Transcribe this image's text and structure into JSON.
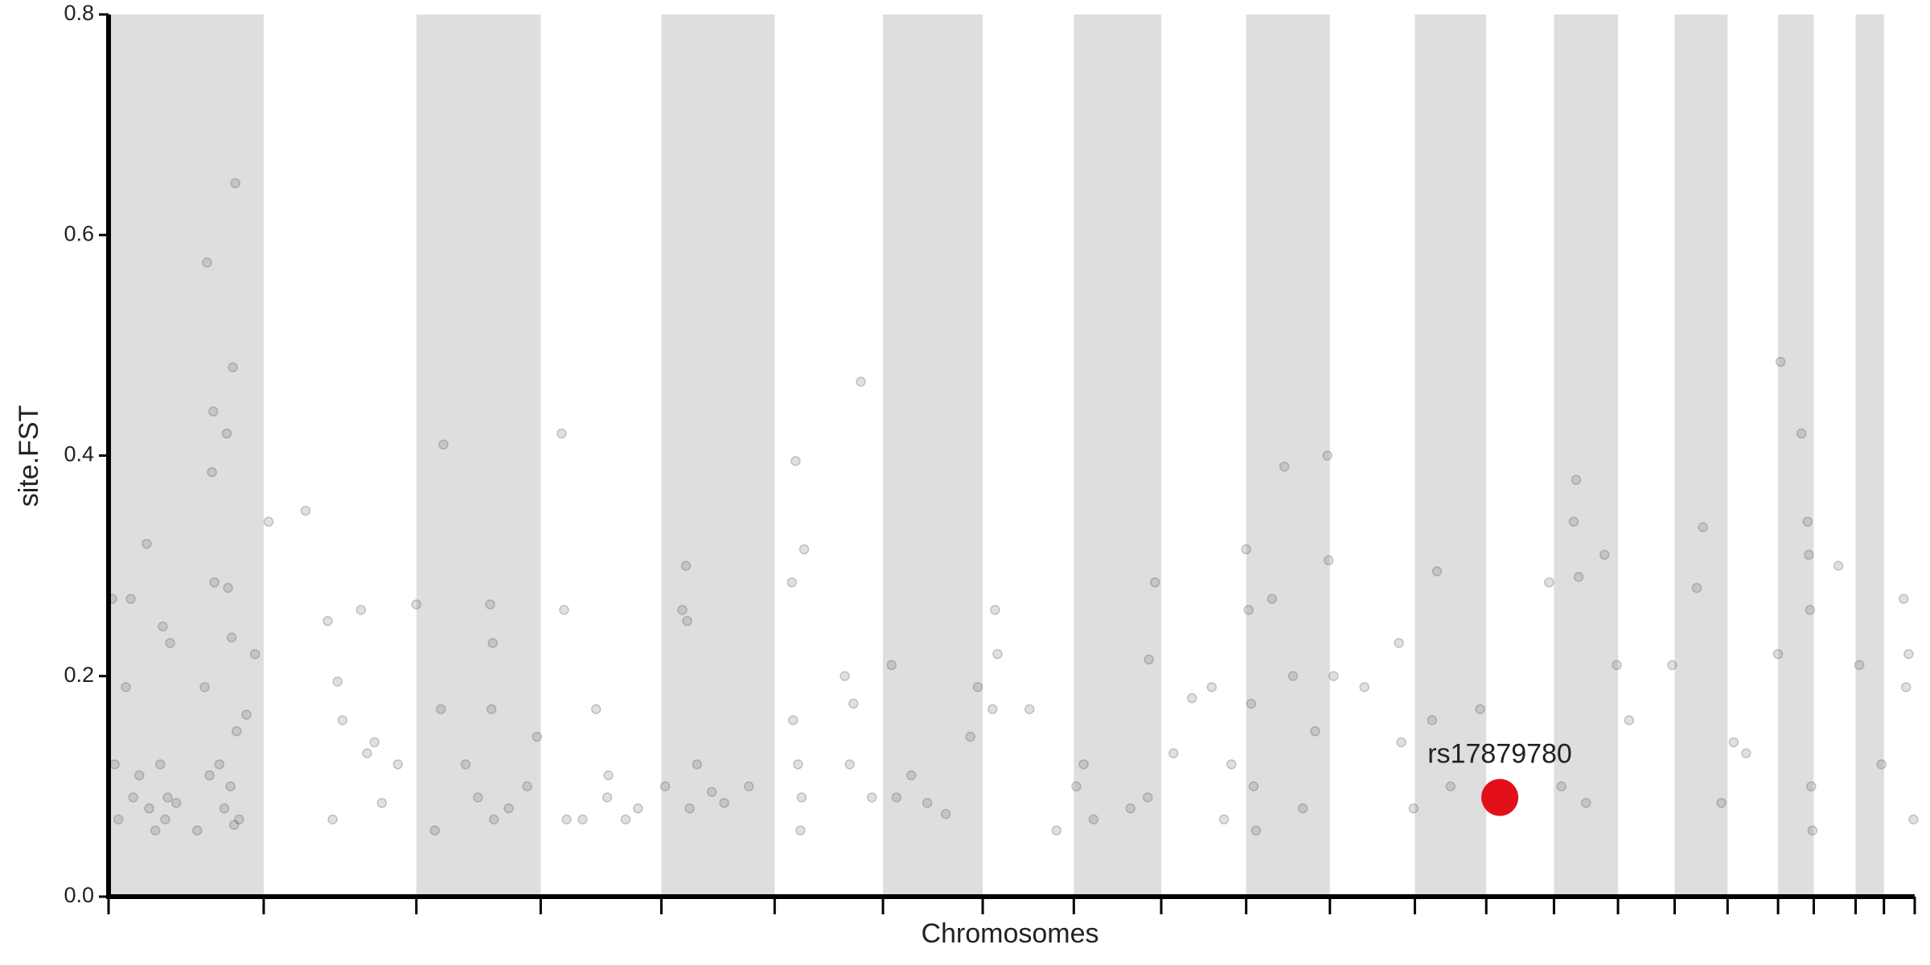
{
  "chart_data": {
    "type": "scatter",
    "x_label": "Chromosomes",
    "y_label": "site.FST",
    "xlim": [
      0,
      1467
    ],
    "ylim": [
      0,
      0.8
    ],
    "xticks": [
      0,
      126,
      250,
      351,
      449,
      541,
      629,
      710,
      784,
      855,
      924,
      992,
      1061,
      1119,
      1174,
      1226,
      1272,
      1315,
      1356,
      1385,
      1419,
      1442,
      1467
    ],
    "yticks": [
      {
        "value": 0,
        "label": "0.0"
      },
      0.2,
      0.4,
      0.6,
      0.8
    ],
    "bands": [
      [
        0,
        126
      ],
      [
        250,
        351
      ],
      [
        449,
        541
      ],
      [
        629,
        710
      ],
      [
        784,
        855
      ],
      [
        924,
        992
      ],
      [
        1061,
        1119
      ],
      [
        1174,
        1226
      ],
      [
        1272,
        1315
      ],
      [
        1356,
        1385
      ],
      [
        1419,
        1442
      ]
    ],
    "band_color": "#dedede",
    "color": "#555555",
    "x": [
      3,
      5,
      8,
      14,
      18,
      20,
      25,
      31,
      33,
      38,
      42,
      44,
      46,
      48,
      50,
      55,
      72,
      78,
      80,
      82,
      85,
      86,
      90,
      94,
      96,
      97,
      100,
      101,
      102,
      104,
      106,
      112,
      119,
      103,
      84,
      99,
      130,
      160,
      178,
      182,
      186,
      190,
      205,
      210,
      216,
      235,
      222,
      250,
      265,
      272,
      270,
      290,
      300,
      310,
      312,
      311,
      313,
      325,
      340,
      348,
      370,
      368,
      372,
      385,
      396,
      405,
      406,
      420,
      430,
      452,
      466,
      469,
      470,
      472,
      478,
      490,
      500,
      520,
      555,
      556,
      558,
      560,
      563,
      562,
      565,
      598,
      605,
      611,
      620,
      602,
      636,
      640,
      652,
      665,
      680,
      700,
      706,
      720,
      722,
      718,
      748,
      770,
      786,
      792,
      800,
      830,
      844,
      850,
      845,
      865,
      880,
      896,
      906,
      912,
      924,
      926,
      928,
      930,
      932,
      945,
      955,
      962,
      970,
      990,
      991,
      995,
      980,
      1020,
      1048,
      1050,
      1060,
      1079,
      1075,
      1090,
      1114,
      1170,
      1190,
      1192,
      1194,
      1200,
      1180,
      1215,
      1225,
      1235,
      1270,
      1290,
      1295,
      1310,
      1320,
      1330,
      1356,
      1358,
      1375,
      1380,
      1381,
      1382,
      1383,
      1384,
      1405,
      1422,
      1440,
      1458,
      1460,
      1462,
      1466
    ],
    "values": [
      0.27,
      0.12,
      0.07,
      0.19,
      0.27,
      0.09,
      0.11,
      0.32,
      0.08,
      0.06,
      0.12,
      0.245,
      0.07,
      0.09,
      0.23,
      0.085,
      0.06,
      0.19,
      0.575,
      0.11,
      0.44,
      0.285,
      0.12,
      0.08,
      0.42,
      0.28,
      0.235,
      0.48,
      0.065,
      0.15,
      0.07,
      0.165,
      0.22,
      0.647,
      0.385,
      0.1,
      0.34,
      0.35,
      0.25,
      0.07,
      0.195,
      0.16,
      0.26,
      0.13,
      0.14,
      0.12,
      0.085,
      0.265,
      0.06,
      0.41,
      0.17,
      0.12,
      0.09,
      0.265,
      0.23,
      0.17,
      0.07,
      0.08,
      0.1,
      0.145,
      0.26,
      0.42,
      0.07,
      0.07,
      0.17,
      0.09,
      0.11,
      0.07,
      0.08,
      0.1,
      0.26,
      0.3,
      0.25,
      0.08,
      0.12,
      0.095,
      0.085,
      0.1,
      0.285,
      0.16,
      0.395,
      0.12,
      0.09,
      0.06,
      0.315,
      0.2,
      0.175,
      0.467,
      0.09,
      0.12,
      0.21,
      0.09,
      0.11,
      0.085,
      0.075,
      0.145,
      0.19,
      0.26,
      0.22,
      0.17,
      0.17,
      0.06,
      0.1,
      0.12,
      0.07,
      0.08,
      0.09,
      0.285,
      0.215,
      0.13,
      0.18,
      0.19,
      0.07,
      0.12,
      0.315,
      0.26,
      0.175,
      0.1,
      0.06,
      0.27,
      0.39,
      0.2,
      0.08,
      0.4,
      0.305,
      0.2,
      0.15,
      0.19,
      0.23,
      0.14,
      0.08,
      0.295,
      0.16,
      0.1,
      0.17,
      0.285,
      0.34,
      0.378,
      0.29,
      0.085,
      0.1,
      0.31,
      0.21,
      0.16,
      0.21,
      0.28,
      0.335,
      0.085,
      0.14,
      0.13,
      0.22,
      0.485,
      0.42,
      0.34,
      0.31,
      0.26,
      0.1,
      0.06,
      0.3,
      0.21,
      0.12,
      0.27,
      0.19,
      0.22,
      0.07
    ],
    "highlight": {
      "label": "rs17879780",
      "x": 1130,
      "value": 0.09,
      "color": "#e3101a"
    }
  }
}
